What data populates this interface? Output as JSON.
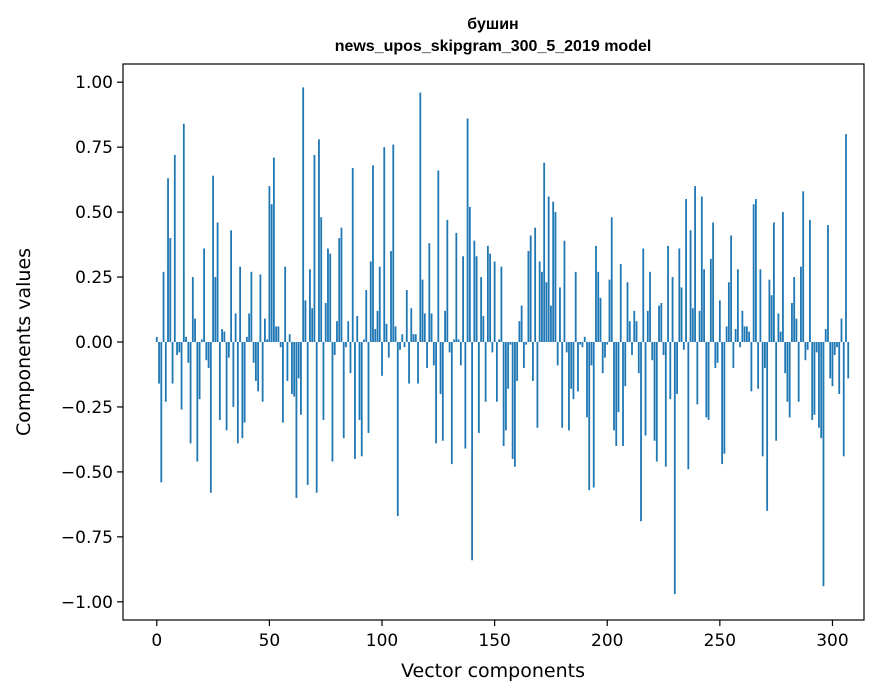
{
  "chart_data": {
    "type": "bar",
    "title": "бушин",
    "subtitle": "news_upos_skipgram_300_5_2019 model",
    "xlabel": "Vector components",
    "ylabel": "Components values",
    "xlim": [
      -15,
      314
    ],
    "ylim": [
      -1.07,
      1.07
    ],
    "xticks": [
      0,
      50,
      100,
      150,
      200,
      250,
      300
    ],
    "yticks": [
      -1.0,
      -0.75,
      -0.5,
      -0.25,
      0.0,
      0.25,
      0.5,
      0.75,
      1.0
    ],
    "ytick_labels": [
      "−1.00",
      "−0.75",
      "−0.50",
      "−0.25",
      "0.00",
      "0.25",
      "0.50",
      "0.75",
      "1.00"
    ],
    "bar_color": "#1f77b4",
    "grid": false,
    "values": [
      0.02,
      -0.16,
      -0.54,
      0.27,
      -0.23,
      0.63,
      0.4,
      -0.16,
      0.72,
      -0.05,
      -0.04,
      -0.26,
      0.84,
      0.02,
      -0.08,
      -0.39,
      0.25,
      0.09,
      -0.46,
      -0.22,
      0.01,
      0.36,
      -0.07,
      -0.1,
      -0.58,
      0.64,
      0.25,
      0.46,
      -0.3,
      0.05,
      0.04,
      -0.34,
      -0.06,
      0.43,
      -0.25,
      0.11,
      -0.39,
      0.29,
      -0.37,
      -0.31,
      0.02,
      0.11,
      0.27,
      -0.08,
      -0.15,
      -0.19,
      0.26,
      -0.23,
      0.09,
      0.01,
      0.6,
      0.53,
      0.71,
      0.06,
      0.06,
      -0.02,
      -0.31,
      0.29,
      -0.15,
      0.03,
      -0.2,
      -0.21,
      -0.6,
      -0.14,
      -0.28,
      0.98,
      0.16,
      -0.55,
      0.28,
      0.13,
      0.72,
      -0.58,
      0.78,
      0.48,
      -0.3,
      0.15,
      0.36,
      0.34,
      -0.46,
      -0.05,
      0.08,
      0.4,
      0.44,
      -0.37,
      -0.02,
      0.08,
      -0.12,
      0.67,
      -0.45,
      0.1,
      -0.3,
      -0.44,
      0.01,
      0.2,
      -0.35,
      0.31,
      0.68,
      0.05,
      0.12,
      0.29,
      -0.13,
      0.75,
      0.07,
      -0.06,
      0.35,
      0.76,
      0.06,
      -0.67,
      -0.03,
      0.03,
      -0.02,
      0.2,
      -0.16,
      0.13,
      0.03,
      0.03,
      -0.16,
      0.96,
      0.24,
      0.11,
      -0.1,
      0.38,
      0.11,
      -0.09,
      -0.39,
      0.66,
      -0.2,
      -0.38,
      0.12,
      0.47,
      -0.04,
      -0.47,
      0.01,
      0.42,
      0.01,
      -0.09,
      0.33,
      -0.41,
      0.86,
      0.52,
      -0.84,
      0.39,
      0.33,
      -0.35,
      0.25,
      0.1,
      -0.23,
      0.37,
      0.34,
      -0.04,
      0.31,
      -0.23,
      0.01,
      0.29,
      -0.4,
      -0.34,
      -0.18,
      -0.01,
      -0.45,
      -0.48,
      -0.15,
      0.08,
      0.14,
      -0.1,
      -0.01,
      0.35,
      0.41,
      -0.15,
      0.44,
      -0.33,
      0.31,
      0.27,
      0.69,
      0.23,
      0.56,
      0.14,
      0.54,
      0.5,
      -0.09,
      0.21,
      -0.33,
      0.39,
      -0.04,
      -0.34,
      -0.18,
      -0.22,
      0.27,
      -0.19,
      -0.01,
      -0.02,
      0.02,
      -0.29,
      -0.57,
      -0.09,
      -0.56,
      0.37,
      0.27,
      0.17,
      -0.12,
      -0.06,
      -0.01,
      0.24,
      0.48,
      -0.34,
      -0.4,
      -0.27,
      0.3,
      -0.4,
      -0.17,
      0.23,
      0.08,
      -0.05,
      0.12,
      0.08,
      -0.12,
      -0.69,
      0.36,
      -0.36,
      0.12,
      0.27,
      -0.07,
      -0.38,
      -0.46,
      0.14,
      0.15,
      -0.05,
      -0.48,
      0.37,
      -0.22,
      0.25,
      -0.97,
      -0.2,
      0.36,
      0.21,
      -0.03,
      0.55,
      -0.49,
      0.43,
      0.13,
      0.6,
      -0.24,
      0.12,
      0.56,
      0.28,
      -0.29,
      -0.3,
      0.32,
      0.46,
      -0.1,
      -0.08,
      0.16,
      -0.47,
      -0.43,
      0.06,
      0.23,
      0.41,
      -0.1,
      0.05,
      0.28,
      -0.02,
      0.12,
      0.06,
      0.06,
      0.04,
      -0.19,
      0.53,
      0.55,
      -0.18,
      0.28,
      -0.44,
      -0.1,
      -0.65,
      0.24,
      0.18,
      0.46,
      -0.38,
      0.11,
      0.04,
      0.5,
      -0.12,
      -0.23,
      -0.29,
      0.15,
      0.25,
      0.09,
      -0.23,
      0.29,
      0.58,
      -0.07,
      -0.03,
      0.47,
      -0.3,
      -0.28,
      -0.04,
      -0.33,
      -0.37,
      -0.94,
      0.05,
      0.45,
      -0.14,
      -0.17,
      -0.05,
      -0.02,
      -0.2,
      0.09,
      -0.44,
      0.8,
      -0.14
    ]
  }
}
